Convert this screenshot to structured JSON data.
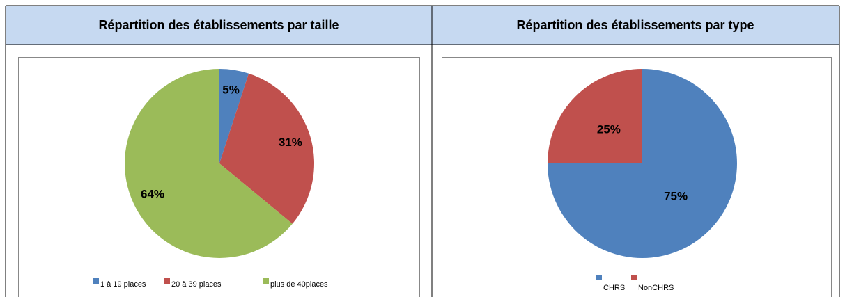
{
  "chart_data": [
    {
      "type": "pie",
      "title": "Répartition des établissements par taille",
      "categories": [
        "1 à 19 places",
        "20 à 39 places",
        "plus de 40places"
      ],
      "values": [
        5,
        31,
        64
      ],
      "value_labels": [
        "5%",
        "31%",
        "64%"
      ],
      "colors": [
        "#4f81bd",
        "#c0504d",
        "#9bbb59"
      ],
      "legend": "bottom"
    },
    {
      "type": "pie",
      "title": "Répartition des établissements par type",
      "categories": [
        "CHRS",
        "NonCHRS"
      ],
      "values": [
        75,
        25
      ],
      "value_labels": [
        "75%",
        "25%"
      ],
      "colors": [
        "#4f81bd",
        "#c0504d"
      ],
      "legend": "bottom"
    }
  ]
}
